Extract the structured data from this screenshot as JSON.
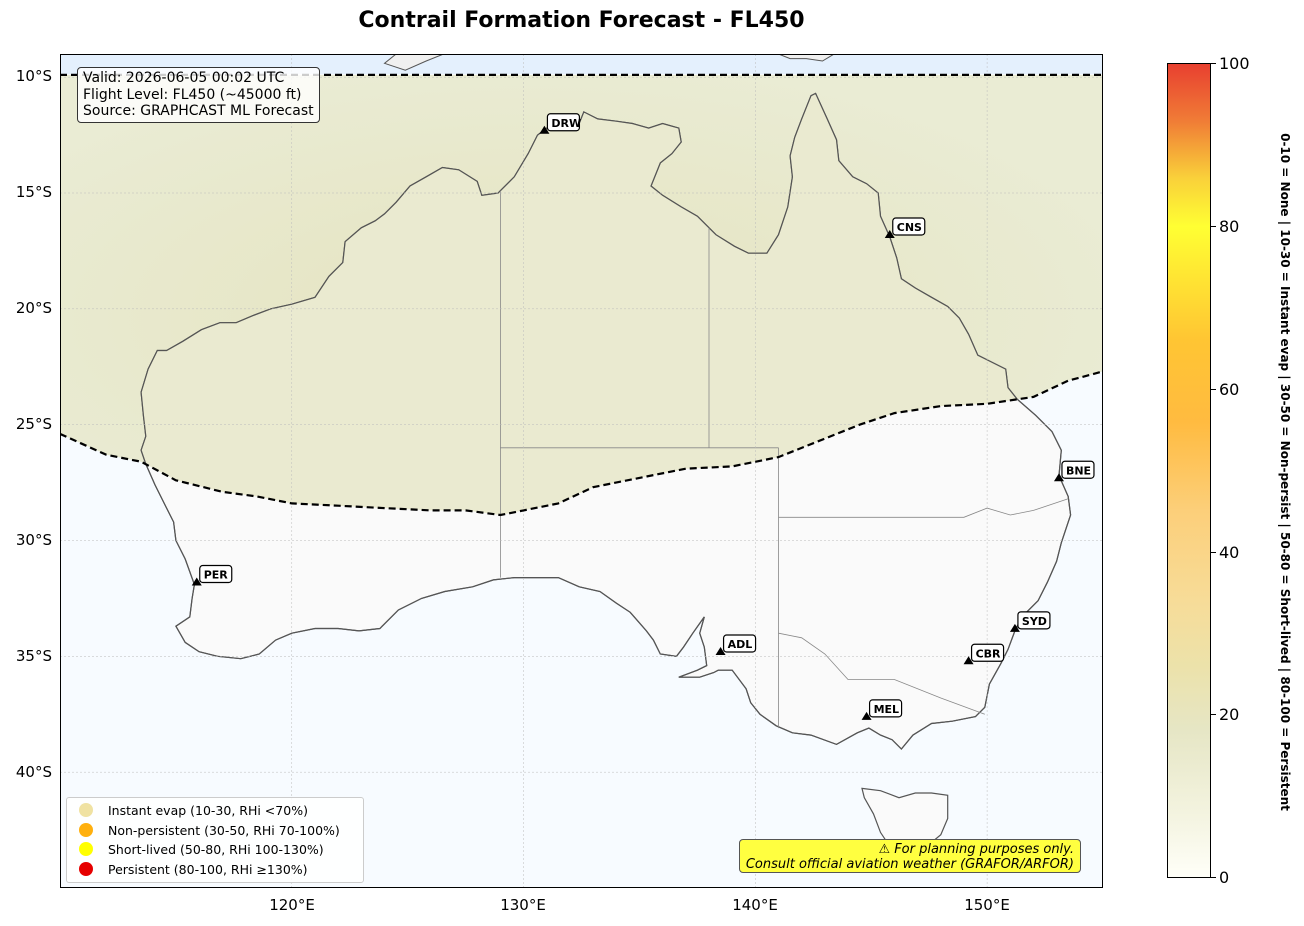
{
  "title": "Contrail Formation Forecast - FL450",
  "info": {
    "line1": "Valid: 2026-06-05 00:02 UTC",
    "line2": "Flight Level: FL450 (~45000 ft)",
    "line3": "Source: GRAPHCAST ML Forecast"
  },
  "axes": {
    "lat_labels": [
      "10°S",
      "15°S",
      "20°S",
      "25°S",
      "30°S",
      "35°S",
      "40°S"
    ],
    "lon_labels": [
      "120°E",
      "130°E",
      "140°E",
      "150°E"
    ]
  },
  "airports": [
    {
      "code": "DRW",
      "lon": 130.9,
      "lat": -12.4
    },
    {
      "code": "CNS",
      "lon": 145.8,
      "lat": -16.9
    },
    {
      "code": "BNE",
      "lon": 153.1,
      "lat": -27.4
    },
    {
      "code": "PER",
      "lon": 115.9,
      "lat": -31.9
    },
    {
      "code": "SYD",
      "lon": 151.2,
      "lat": -33.9
    },
    {
      "code": "ADL",
      "lon": 138.5,
      "lat": -34.9
    },
    {
      "code": "CBR",
      "lon": 149.2,
      "lat": -35.3
    },
    {
      "code": "MEL",
      "lon": 144.8,
      "lat": -37.7
    }
  ],
  "legend": [
    {
      "label": "Instant evap (10-30, RHi <70%)",
      "color": "#f0e2a2"
    },
    {
      "label": "Non-persistent (30-50, RHi 70-100%)",
      "color": "#ffb00e"
    },
    {
      "label": "Short-lived (50-80, RHi 100-130%)",
      "color": "#ffff00"
    },
    {
      "label": "Persistent (80-100, RHi ≥130%)",
      "color": "#e60000"
    }
  ],
  "warning": {
    "line1": "⚠ For planning purposes only.",
    "line2": "Consult official aviation weather (GRAFOR/ARFOR)"
  },
  "colorbar": {
    "ticks": [
      "0",
      "20",
      "40",
      "60",
      "80",
      "100"
    ],
    "min": 0,
    "max": 100,
    "label": "0-10 = None  |  10-30 = Instant evap  |  30-50 = Non-persist  |  50-80 = Short-lived  |  80-100 = Persistent"
  },
  "map_data": {
    "extent": {
      "lon_min": 110,
      "lon_max": 155,
      "lat_min": -45,
      "lat_max": -9
    },
    "forecast_value_zone": 20,
    "forecast_zone_color": "#e8e8c8",
    "background_color": "#f7fbff",
    "boundary_line": [
      [
        110,
        -25.4
      ],
      [
        112,
        -26.3
      ],
      [
        113.5,
        -26.6
      ],
      [
        115,
        -27.4
      ],
      [
        117,
        -27.9
      ],
      [
        118.5,
        -28.1
      ],
      [
        120,
        -28.4
      ],
      [
        122,
        -28.5
      ],
      [
        124,
        -28.6
      ],
      [
        126,
        -28.7
      ],
      [
        127.5,
        -28.7
      ],
      [
        129,
        -28.9
      ],
      [
        130,
        -28.7
      ],
      [
        131.5,
        -28.4
      ],
      [
        133,
        -27.7
      ],
      [
        135,
        -27.3
      ],
      [
        137,
        -26.9
      ],
      [
        139,
        -26.8
      ],
      [
        141,
        -26.4
      ],
      [
        143,
        -25.6
      ],
      [
        144.5,
        -25.0
      ],
      [
        146,
        -24.5
      ],
      [
        148,
        -24.2
      ],
      [
        150,
        -24.1
      ],
      [
        152,
        -23.8
      ],
      [
        153.5,
        -23.1
      ],
      [
        155,
        -22.7
      ]
    ],
    "north_boundary_lat": -9.9
  }
}
